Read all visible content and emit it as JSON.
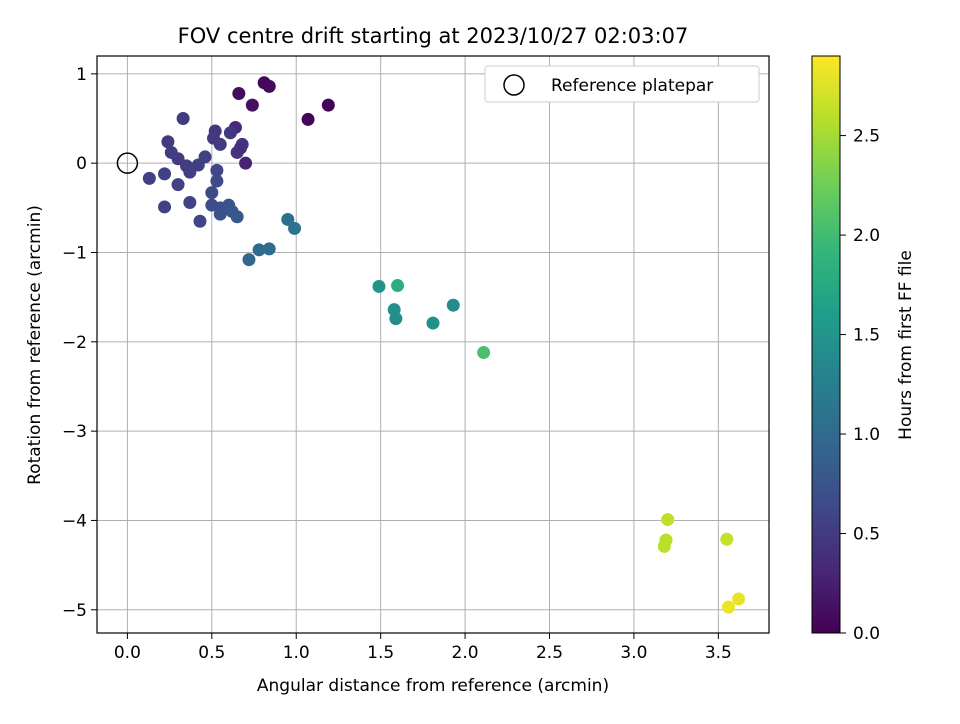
{
  "chart_data": {
    "type": "scatter",
    "title": "FOV centre drift starting at 2023/10/27 02:03:07",
    "xlabel": "Angular distance from reference (arcmin)",
    "ylabel": "Rotation from reference (arcmin)",
    "xlim": [
      -0.18,
      3.8
    ],
    "ylim": [
      -5.26,
      1.2
    ],
    "xticks": [
      0.0,
      0.5,
      1.0,
      1.5,
      2.0,
      2.5,
      3.0,
      3.5
    ],
    "xtick_labels": [
      "0.0",
      "0.5",
      "1.0",
      "1.5",
      "2.0",
      "2.5",
      "3.0",
      "3.5"
    ],
    "yticks": [
      1,
      0,
      -1,
      -2,
      -3,
      -4,
      -5
    ],
    "ytick_labels": [
      "1",
      "0",
      "−1",
      "−2",
      "−3",
      "−4",
      "−5"
    ],
    "grid": true,
    "colormap": "viridis",
    "colorbar": {
      "label": "Hours from first FF file",
      "range": [
        0.0,
        2.9
      ],
      "ticks": [
        0.0,
        0.5,
        1.0,
        1.5,
        2.0,
        2.5
      ],
      "tick_labels": [
        "0.0",
        "0.5",
        "1.0",
        "1.5",
        "2.0",
        "2.5"
      ]
    },
    "legend": {
      "location": "top-right",
      "entries": [
        "Reference platepar"
      ]
    },
    "reference_point": {
      "x": 0.0,
      "y": 0.0
    },
    "points": [
      {
        "x": 0.81,
        "y": 0.9,
        "c": 0.05
      },
      {
        "x": 0.84,
        "y": 0.86,
        "c": 0.07
      },
      {
        "x": 0.66,
        "y": 0.78,
        "c": 0.09
      },
      {
        "x": 0.74,
        "y": 0.65,
        "c": 0.12
      },
      {
        "x": 1.19,
        "y": 0.65,
        "c": 0.02
      },
      {
        "x": 1.07,
        "y": 0.49,
        "c": 0.04
      },
      {
        "x": 0.7,
        "y": 0.0,
        "c": 0.28
      },
      {
        "x": 0.64,
        "y": 0.4,
        "c": 0.33
      },
      {
        "x": 0.68,
        "y": 0.21,
        "c": 0.42
      },
      {
        "x": 0.65,
        "y": 0.12,
        "c": 0.45
      },
      {
        "x": 0.67,
        "y": 0.17,
        "c": 0.4
      },
      {
        "x": 0.61,
        "y": 0.34,
        "c": 0.47
      },
      {
        "x": 0.52,
        "y": 0.36,
        "c": 0.47
      },
      {
        "x": 0.51,
        "y": 0.28,
        "c": 0.48
      },
      {
        "x": 0.55,
        "y": 0.21,
        "c": 0.5
      },
      {
        "x": 0.33,
        "y": 0.5,
        "c": 0.5
      },
      {
        "x": 0.24,
        "y": 0.24,
        "c": 0.5
      },
      {
        "x": 0.26,
        "y": 0.12,
        "c": 0.52
      },
      {
        "x": 0.3,
        "y": 0.05,
        "c": 0.52
      },
      {
        "x": 0.35,
        "y": -0.03,
        "c": 0.53
      },
      {
        "x": 0.37,
        "y": -0.1,
        "c": 0.53
      },
      {
        "x": 0.42,
        "y": -0.02,
        "c": 0.54
      },
      {
        "x": 0.46,
        "y": 0.07,
        "c": 0.55
      },
      {
        "x": 0.13,
        "y": -0.17,
        "c": 0.55
      },
      {
        "x": 0.22,
        "y": -0.12,
        "c": 0.56
      },
      {
        "x": 0.3,
        "y": -0.24,
        "c": 0.56
      },
      {
        "x": 0.22,
        "y": -0.49,
        "c": 0.57
      },
      {
        "x": 0.37,
        "y": -0.44,
        "c": 0.58
      },
      {
        "x": 0.43,
        "y": -0.65,
        "c": 0.6
      },
      {
        "x": 0.53,
        "y": -0.08,
        "c": 0.62
      },
      {
        "x": 0.53,
        "y": -0.2,
        "c": 0.64
      },
      {
        "x": 0.5,
        "y": -0.33,
        "c": 0.66
      },
      {
        "x": 0.5,
        "y": -0.47,
        "c": 0.68
      },
      {
        "x": 0.55,
        "y": -0.5,
        "c": 0.7
      },
      {
        "x": 0.55,
        "y": -0.57,
        "c": 0.72
      },
      {
        "x": 0.6,
        "y": -0.47,
        "c": 0.74
      },
      {
        "x": 0.62,
        "y": -0.54,
        "c": 0.76
      },
      {
        "x": 0.65,
        "y": -0.6,
        "c": 0.78
      },
      {
        "x": 0.95,
        "y": -0.63,
        "c": 1.05
      },
      {
        "x": 0.99,
        "y": -0.73,
        "c": 1.1
      },
      {
        "x": 0.78,
        "y": -0.97,
        "c": 1.0
      },
      {
        "x": 0.84,
        "y": -0.96,
        "c": 1.02
      },
      {
        "x": 0.72,
        "y": -1.08,
        "c": 0.98
      },
      {
        "x": 1.49,
        "y": -1.38,
        "c": 1.48
      },
      {
        "x": 1.6,
        "y": -1.37,
        "c": 1.8
      },
      {
        "x": 1.58,
        "y": -1.64,
        "c": 1.45
      },
      {
        "x": 1.59,
        "y": -1.74,
        "c": 1.42
      },
      {
        "x": 1.81,
        "y": -1.79,
        "c": 1.46
      },
      {
        "x": 1.93,
        "y": -1.59,
        "c": 1.4
      },
      {
        "x": 2.11,
        "y": -2.12,
        "c": 2.05
      },
      {
        "x": 3.2,
        "y": -3.99,
        "c": 2.62
      },
      {
        "x": 3.19,
        "y": -4.22,
        "c": 2.6
      },
      {
        "x": 3.18,
        "y": -4.29,
        "c": 2.6
      },
      {
        "x": 3.55,
        "y": -4.21,
        "c": 2.65
      },
      {
        "x": 3.56,
        "y": -4.97,
        "c": 2.82
      },
      {
        "x": 3.62,
        "y": -4.88,
        "c": 2.8
      }
    ]
  }
}
